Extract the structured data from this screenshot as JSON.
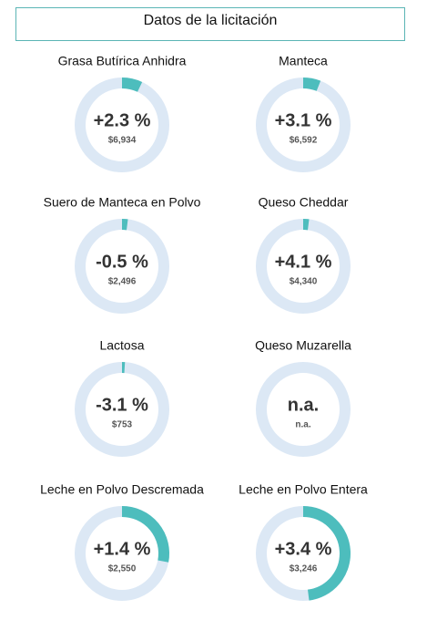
{
  "header": {
    "title": "Datos de la licitación"
  },
  "items": [
    {
      "name": "Grasa Butírica Anhidra",
      "change": "+2.3 %",
      "price": "$6,934",
      "gauge": 7
    },
    {
      "name": "Manteca",
      "change": "+3.1 %",
      "price": "$6,592",
      "gauge": 6
    },
    {
      "name": "Suero de Manteca en Polvo",
      "change": "-0.5 %",
      "price": "$2,496",
      "gauge": 2
    },
    {
      "name": "Queso Cheddar",
      "change": "+4.1 %",
      "price": "$4,340",
      "gauge": 2
    },
    {
      "name": "Lactosa",
      "change": "-3.1 %",
      "price": "$753",
      "gauge": 1
    },
    {
      "name": "Queso Muzarella",
      "change": "n.a.",
      "price": "n.a.",
      "gauge": null
    },
    {
      "name": "Leche en Polvo Descremada",
      "change": "+1.4 %",
      "price": "$2,550",
      "gauge": 28
    },
    {
      "name": "Leche en Polvo Entera",
      "change": "+3.4 %",
      "price": "$3,246",
      "gauge": 48
    }
  ]
}
